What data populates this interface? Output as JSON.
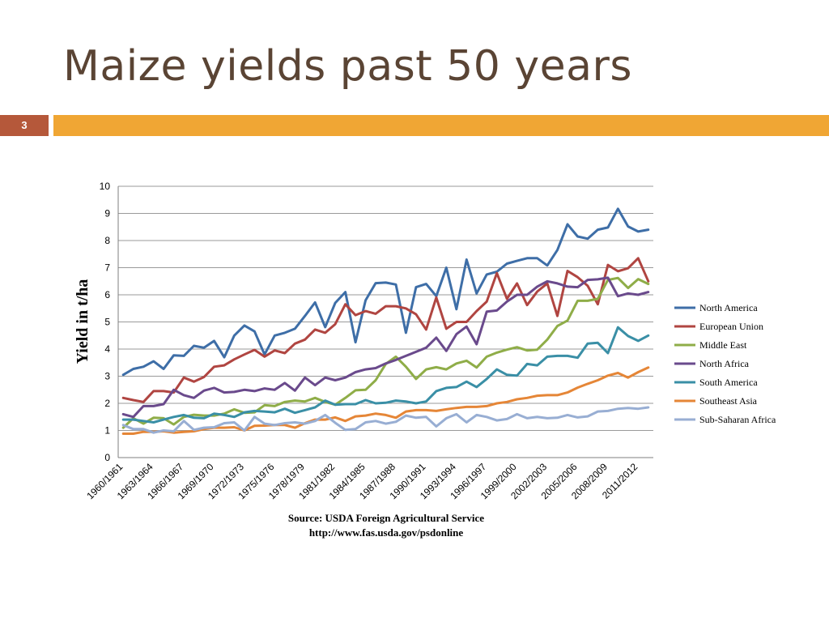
{
  "slide": {
    "title": "Maize yields past 50 years",
    "number": "3",
    "source_line1": "Source: USDA Foreign Agricultural Service",
    "source_line2": "http://www.fas.usda.gov/psdonline",
    "colors": {
      "title": "#5a4434",
      "number_box": "#b5583a",
      "accent_bar": "#f0a634"
    }
  },
  "chart_data": {
    "type": "line",
    "title": "",
    "xlabel": "",
    "ylabel": "Yield in t/ha",
    "ylim": [
      0,
      10
    ],
    "yticks": [
      0,
      1,
      2,
      3,
      4,
      5,
      6,
      7,
      8,
      9,
      10
    ],
    "grid": true,
    "legend": "right",
    "x": [
      "1960/1961",
      "1961/1962",
      "1962/1963",
      "1963/1964",
      "1964/1965",
      "1965/1966",
      "1966/1967",
      "1967/1968",
      "1968/1969",
      "1969/1970",
      "1970/1971",
      "1971/1972",
      "1972/1973",
      "1973/1974",
      "1974/1975",
      "1975/1976",
      "1976/1977",
      "1977/1978",
      "1978/1979",
      "1979/1980",
      "1980/1981",
      "1981/1982",
      "1982/1983",
      "1983/1984",
      "1984/1985",
      "1985/1986",
      "1986/1987",
      "1987/1988",
      "1988/1989",
      "1989/1990",
      "1990/1991",
      "1991/1992",
      "1992/1993",
      "1993/1994",
      "1994/1995",
      "1995/1996",
      "1996/1997",
      "1997/1998",
      "1998/1999",
      "1999/2000",
      "2000/2001",
      "2001/2002",
      "2002/2003",
      "2003/2004",
      "2004/2005",
      "2005/2006",
      "2006/2007",
      "2007/2008",
      "2008/2009",
      "2009/2010",
      "2010/2011",
      "2011/2012",
      "2012/2013"
    ],
    "xtick_labels": [
      "1960/1961",
      "1963/1964",
      "1966/1967",
      "1969/1970",
      "1972/1973",
      "1975/1976",
      "1978/1979",
      "1981/1982",
      "1984/1985",
      "1987/1988",
      "1990/1991",
      "1993/1994",
      "1996/1997",
      "1999/2000",
      "2002/2003",
      "2005/2006",
      "2008/2009",
      "2011/2012"
    ],
    "series": [
      {
        "name": "North America",
        "color": "#3e6ea7",
        "values": [
          3.05,
          3.27,
          3.35,
          3.55,
          3.27,
          3.77,
          3.75,
          4.12,
          4.05,
          4.3,
          3.7,
          4.5,
          4.87,
          4.65,
          3.8,
          4.5,
          4.6,
          4.75,
          5.22,
          5.72,
          4.81,
          5.7,
          6.1,
          4.25,
          5.8,
          6.43,
          6.45,
          6.38,
          4.6,
          6.28,
          6.4,
          5.95,
          7.0,
          5.47,
          7.3,
          6.05,
          6.75,
          6.85,
          7.15,
          7.25,
          7.35,
          7.35,
          7.08,
          7.65,
          8.6,
          8.15,
          8.07,
          8.4,
          8.48,
          9.17,
          8.52,
          8.33,
          8.4
        ]
      },
      {
        "name": "European Union",
        "color": "#b04541",
        "values": [
          2.2,
          2.12,
          2.05,
          2.45,
          2.45,
          2.4,
          2.95,
          2.8,
          2.97,
          3.35,
          3.4,
          3.62,
          3.8,
          3.97,
          3.72,
          3.95,
          3.85,
          4.2,
          4.35,
          4.72,
          4.6,
          4.92,
          5.65,
          5.25,
          5.4,
          5.3,
          5.58,
          5.58,
          5.5,
          5.28,
          4.72,
          5.9,
          4.75,
          5.0,
          5.0,
          5.4,
          5.75,
          6.8,
          5.85,
          6.42,
          5.62,
          6.12,
          6.42,
          5.22,
          6.88,
          6.65,
          6.33,
          5.65,
          7.1,
          6.87,
          6.98,
          7.35,
          6.5
        ]
      },
      {
        "name": "Middle East",
        "color": "#8fad48",
        "values": [
          1.1,
          1.45,
          1.25,
          1.47,
          1.45,
          1.22,
          1.5,
          1.58,
          1.55,
          1.55,
          1.62,
          1.78,
          1.65,
          1.67,
          1.93,
          1.9,
          2.05,
          2.1,
          2.07,
          2.2,
          2.05,
          1.95,
          2.2,
          2.48,
          2.5,
          2.85,
          3.45,
          3.72,
          3.35,
          2.9,
          3.25,
          3.33,
          3.25,
          3.47,
          3.57,
          3.32,
          3.72,
          3.87,
          3.98,
          4.07,
          3.95,
          3.98,
          4.35,
          4.85,
          5.05,
          5.78,
          5.78,
          5.85,
          6.55,
          6.62,
          6.25,
          6.58,
          6.4
        ]
      },
      {
        "name": "North Africa",
        "color": "#6a4a8c",
        "values": [
          1.6,
          1.5,
          1.9,
          1.9,
          1.97,
          2.5,
          2.3,
          2.2,
          2.47,
          2.57,
          2.4,
          2.42,
          2.5,
          2.45,
          2.55,
          2.5,
          2.75,
          2.47,
          2.95,
          2.67,
          2.95,
          2.85,
          2.95,
          3.15,
          3.25,
          3.3,
          3.47,
          3.6,
          3.75,
          3.9,
          4.05,
          4.42,
          3.93,
          4.55,
          4.83,
          4.18,
          5.38,
          5.42,
          5.75,
          6.0,
          6.0,
          6.3,
          6.5,
          6.42,
          6.3,
          6.28,
          6.55,
          6.57,
          6.63,
          5.95,
          6.05,
          6.0,
          6.1
        ]
      },
      {
        "name": "South America",
        "color": "#3a8fa6",
        "values": [
          1.4,
          1.4,
          1.35,
          1.3,
          1.4,
          1.5,
          1.57,
          1.47,
          1.45,
          1.62,
          1.57,
          1.5,
          1.67,
          1.72,
          1.7,
          1.67,
          1.8,
          1.65,
          1.75,
          1.85,
          2.1,
          1.95,
          1.97,
          1.97,
          2.12,
          2.0,
          2.02,
          2.1,
          2.07,
          2.0,
          2.07,
          2.45,
          2.57,
          2.6,
          2.8,
          2.6,
          2.9,
          3.25,
          3.05,
          3.02,
          3.45,
          3.4,
          3.72,
          3.75,
          3.75,
          3.68,
          4.2,
          4.23,
          3.85,
          4.8,
          4.48,
          4.3,
          4.5
        ]
      },
      {
        "name": "Southeast Asia",
        "color": "#e58637",
        "values": [
          0.88,
          0.88,
          0.95,
          0.95,
          0.97,
          0.92,
          0.95,
          0.97,
          1.05,
          1.1,
          1.1,
          1.12,
          1.0,
          1.17,
          1.18,
          1.2,
          1.2,
          1.1,
          1.27,
          1.4,
          1.4,
          1.48,
          1.35,
          1.52,
          1.55,
          1.62,
          1.57,
          1.47,
          1.7,
          1.75,
          1.75,
          1.72,
          1.78,
          1.83,
          1.87,
          1.87,
          1.9,
          2.0,
          2.05,
          2.15,
          2.2,
          2.28,
          2.3,
          2.3,
          2.4,
          2.58,
          2.72,
          2.85,
          3.02,
          3.12,
          2.95,
          3.15,
          3.32
        ]
      },
      {
        "name": "Sub-Saharan Africa",
        "color": "#98aed3",
        "values": [
          1.2,
          1.05,
          1.05,
          0.92,
          1.0,
          0.97,
          1.35,
          1.02,
          1.1,
          1.12,
          1.27,
          1.3,
          1.0,
          1.5,
          1.25,
          1.2,
          1.27,
          1.3,
          1.25,
          1.35,
          1.57,
          1.28,
          1.02,
          1.05,
          1.3,
          1.35,
          1.25,
          1.32,
          1.55,
          1.47,
          1.5,
          1.15,
          1.45,
          1.6,
          1.3,
          1.57,
          1.5,
          1.37,
          1.42,
          1.6,
          1.45,
          1.5,
          1.45,
          1.47,
          1.57,
          1.48,
          1.52,
          1.7,
          1.72,
          1.8,
          1.83,
          1.8,
          1.85
        ]
      }
    ]
  }
}
